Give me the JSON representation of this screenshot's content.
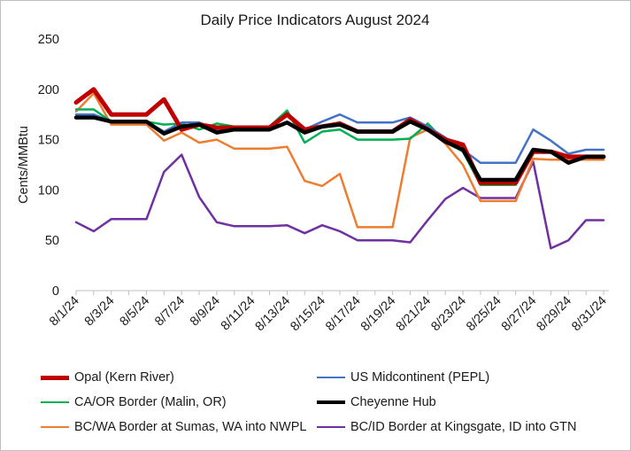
{
  "chart_data": {
    "type": "line",
    "title": "Daily Price Indicators August 2024",
    "xlabel": "",
    "ylabel": "Cents/MMBtu",
    "ylim": [
      0,
      250
    ],
    "yticks": [
      0,
      50,
      100,
      150,
      200,
      250
    ],
    "grid": false,
    "legend_position": "bottom",
    "x": [
      "8/1/24",
      "8/2/24",
      "8/3/24",
      "8/4/24",
      "8/5/24",
      "8/6/24",
      "8/7/24",
      "8/8/24",
      "8/9/24",
      "8/10/24",
      "8/11/24",
      "8/12/24",
      "8/13/24",
      "8/14/24",
      "8/15/24",
      "8/16/24",
      "8/17/24",
      "8/18/24",
      "8/19/24",
      "8/20/24",
      "8/21/24",
      "8/22/24",
      "8/23/24",
      "8/24/24",
      "8/25/24",
      "8/26/24",
      "8/27/24",
      "8/28/24",
      "8/29/24",
      "8/30/24",
      "8/31/24"
    ],
    "xtick_labels": [
      "8/1/24",
      "8/3/24",
      "8/5/24",
      "8/7/24",
      "8/9/24",
      "8/11/24",
      "8/13/24",
      "8/15/24",
      "8/17/24",
      "8/19/24",
      "8/21/24",
      "8/23/24",
      "8/25/24",
      "8/27/24",
      "8/29/24",
      "8/31/24"
    ],
    "series": [
      {
        "name": "Opal (Kern River)",
        "color": "#C00000",
        "width": 5,
        "values": [
          187,
          200,
          175,
          175,
          175,
          190,
          160,
          165,
          162,
          162,
          162,
          162,
          175,
          160,
          163,
          166,
          158,
          158,
          158,
          170,
          160,
          150,
          145,
          107,
          107,
          107,
          138,
          138,
          133,
          133,
          133
        ]
      },
      {
        "name": "US Midcontinent (PEPL)",
        "color": "#4472C4",
        "width": 2.5,
        "values": [
          175,
          175,
          168,
          168,
          168,
          158,
          167,
          167,
          160,
          160,
          160,
          160,
          167,
          160,
          168,
          175,
          167,
          167,
          167,
          172,
          163,
          152,
          140,
          127,
          127,
          127,
          160,
          149,
          136,
          140,
          140
        ]
      },
      {
        "name": "CA/OR Border (Malin, OR)",
        "color": "#00B050",
        "width": 2.5,
        "values": [
          180,
          180,
          168,
          168,
          168,
          165,
          166,
          160,
          166,
          163,
          163,
          163,
          179,
          147,
          158,
          160,
          150,
          150,
          150,
          151,
          166,
          148,
          138,
          105,
          105,
          105,
          138,
          139,
          133,
          132,
          132
        ]
      },
      {
        "name": "Cheyenne Hub",
        "color": "#000000",
        "width": 4.5,
        "values": [
          172,
          172,
          168,
          168,
          168,
          156,
          163,
          165,
          157,
          160,
          160,
          160,
          167,
          157,
          163,
          165,
          158,
          158,
          158,
          168,
          160,
          148,
          140,
          110,
          110,
          110,
          140,
          138,
          127,
          133,
          133
        ]
      },
      {
        "name": "BC/WA Border at Sumas, WA into NWPL",
        "color": "#ED7D31",
        "width": 2.5,
        "values": [
          178,
          196,
          165,
          165,
          165,
          149,
          157,
          147,
          150,
          141,
          141,
          141,
          143,
          109,
          104,
          116,
          63,
          63,
          63,
          152,
          160,
          146,
          125,
          89,
          89,
          89,
          131,
          130,
          130,
          130,
          130
        ]
      },
      {
        "name": "BC/ID Border at Kingsgate, ID into GTN",
        "color": "#7030A0",
        "width": 2.5,
        "values": [
          68,
          59,
          71,
          71,
          71,
          118,
          135,
          93,
          68,
          64,
          64,
          64,
          65,
          57,
          65,
          59,
          50,
          50,
          50,
          48,
          70,
          91,
          102,
          92,
          92,
          92,
          128,
          42,
          50,
          70,
          70
        ]
      }
    ]
  }
}
